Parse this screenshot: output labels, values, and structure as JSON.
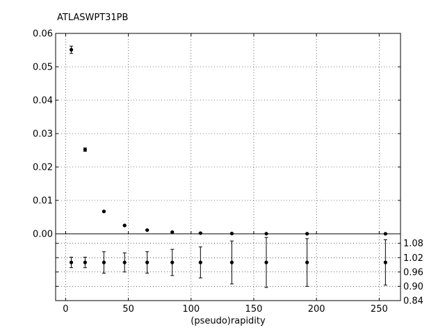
{
  "title": "ATLASWPT31PB",
  "chart_data": [
    {
      "type": "scatter",
      "title": "ATLASWPT31PB",
      "xlabel": "",
      "ylabel": "",
      "xlim": [
        -8,
        267
      ],
      "ylim": [
        0,
        0.06
      ],
      "grid": true,
      "y_ticks": [
        "0.00",
        "0.01",
        "0.02",
        "0.03",
        "0.04",
        "0.05",
        "0.06"
      ],
      "series": [
        {
          "x": [
            4.5,
            15.5,
            30.5,
            47,
            65,
            85,
            107.5,
            132.5,
            160,
            192.5,
            255
          ],
          "y": [
            0.0551,
            0.0252,
            0.0067,
            0.0025,
            0.0011,
            0.0005,
            0.0002,
            8e-05,
            4e-05,
            2e-05,
            1e-05
          ],
          "yerr": [
            0.0011,
            0.0005,
            0.0002,
            0.0001,
            5e-05,
            3e-05,
            1e-05,
            5e-06,
            3e-06,
            2e-06,
            1e-06
          ]
        }
      ]
    },
    {
      "type": "scatter",
      "xlabel": "(pseudo)rapidity",
      "ylabel": "",
      "xlim": [
        -8,
        267
      ],
      "ylim": [
        0.84,
        1.12
      ],
      "grid": true,
      "x_ticks": [
        "0",
        "50",
        "100",
        "150",
        "200",
        "250"
      ],
      "y_ticks": [
        "0.84",
        "0.90",
        "0.96",
        "1.02",
        "1.08"
      ],
      "series": [
        {
          "x": [
            4.5,
            15.5,
            30.5,
            47,
            65,
            85,
            107.5,
            132.5,
            160,
            192.5,
            255
          ],
          "y": [
            1.0,
            1.0,
            1.0,
            1.0,
            1.0,
            1.0,
            1.0,
            1.0,
            1.0,
            1.0,
            1.0
          ],
          "yerr": [
            0.022,
            0.022,
            0.045,
            0.04,
            0.045,
            0.055,
            0.065,
            0.09,
            0.105,
            0.1,
            0.095
          ]
        }
      ]
    }
  ]
}
